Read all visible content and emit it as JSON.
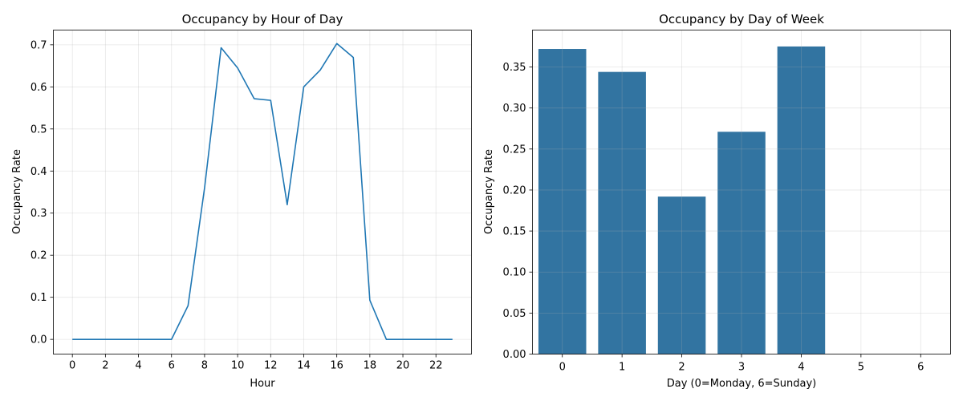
{
  "chart_data": [
    {
      "type": "line",
      "title": "Occupancy by Hour of Day",
      "xlabel": "Hour",
      "ylabel": "Occupancy Rate",
      "xlim": [
        -1.15,
        24.15
      ],
      "ylim": [
        -0.035,
        0.735
      ],
      "xticks": [
        0,
        2,
        4,
        6,
        8,
        10,
        12,
        14,
        16,
        18,
        20,
        22
      ],
      "xtick_labels": [
        "0",
        "2",
        "4",
        "6",
        "8",
        "10",
        "12",
        "14",
        "16",
        "18",
        "20",
        "22"
      ],
      "yticks": [
        0.0,
        0.1,
        0.2,
        0.3,
        0.4,
        0.5,
        0.6,
        0.7
      ],
      "ytick_labels": [
        "0.0",
        "0.1",
        "0.2",
        "0.3",
        "0.4",
        "0.5",
        "0.6",
        "0.7"
      ],
      "grid": true,
      "color": "#1f77b4",
      "x": [
        0,
        1,
        2,
        3,
        4,
        5,
        6,
        7,
        8,
        9,
        10,
        11,
        12,
        13,
        14,
        15,
        16,
        17,
        18,
        19,
        20,
        21,
        22,
        23
      ],
      "y": [
        0.0,
        0.0,
        0.0,
        0.0,
        0.0,
        0.0,
        0.0,
        0.08,
        0.36,
        0.693,
        0.645,
        0.572,
        0.568,
        0.32,
        0.6,
        0.64,
        0.703,
        0.67,
        0.093,
        0.0,
        0.0,
        0.0,
        0.0,
        0.0
      ]
    },
    {
      "type": "bar",
      "title": "Occupancy by Day of Week",
      "xlabel": "Day (0=Monday, 6=Sunday)",
      "ylabel": "Occupancy Rate",
      "xlim": [
        -0.5,
        6.5
      ],
      "ylim": [
        0.0,
        0.395
      ],
      "categories": [
        "0",
        "1",
        "2",
        "3",
        "4",
        "5",
        "6"
      ],
      "values": [
        0.372,
        0.344,
        0.192,
        0.271,
        0.375,
        0.0,
        0.0
      ],
      "yticks": [
        0.0,
        0.05,
        0.1,
        0.15,
        0.2,
        0.25,
        0.3,
        0.35
      ],
      "ytick_labels": [
        "0.00",
        "0.05",
        "0.10",
        "0.15",
        "0.20",
        "0.25",
        "0.30",
        "0.35"
      ],
      "grid": true,
      "color": "#3274a1"
    }
  ]
}
